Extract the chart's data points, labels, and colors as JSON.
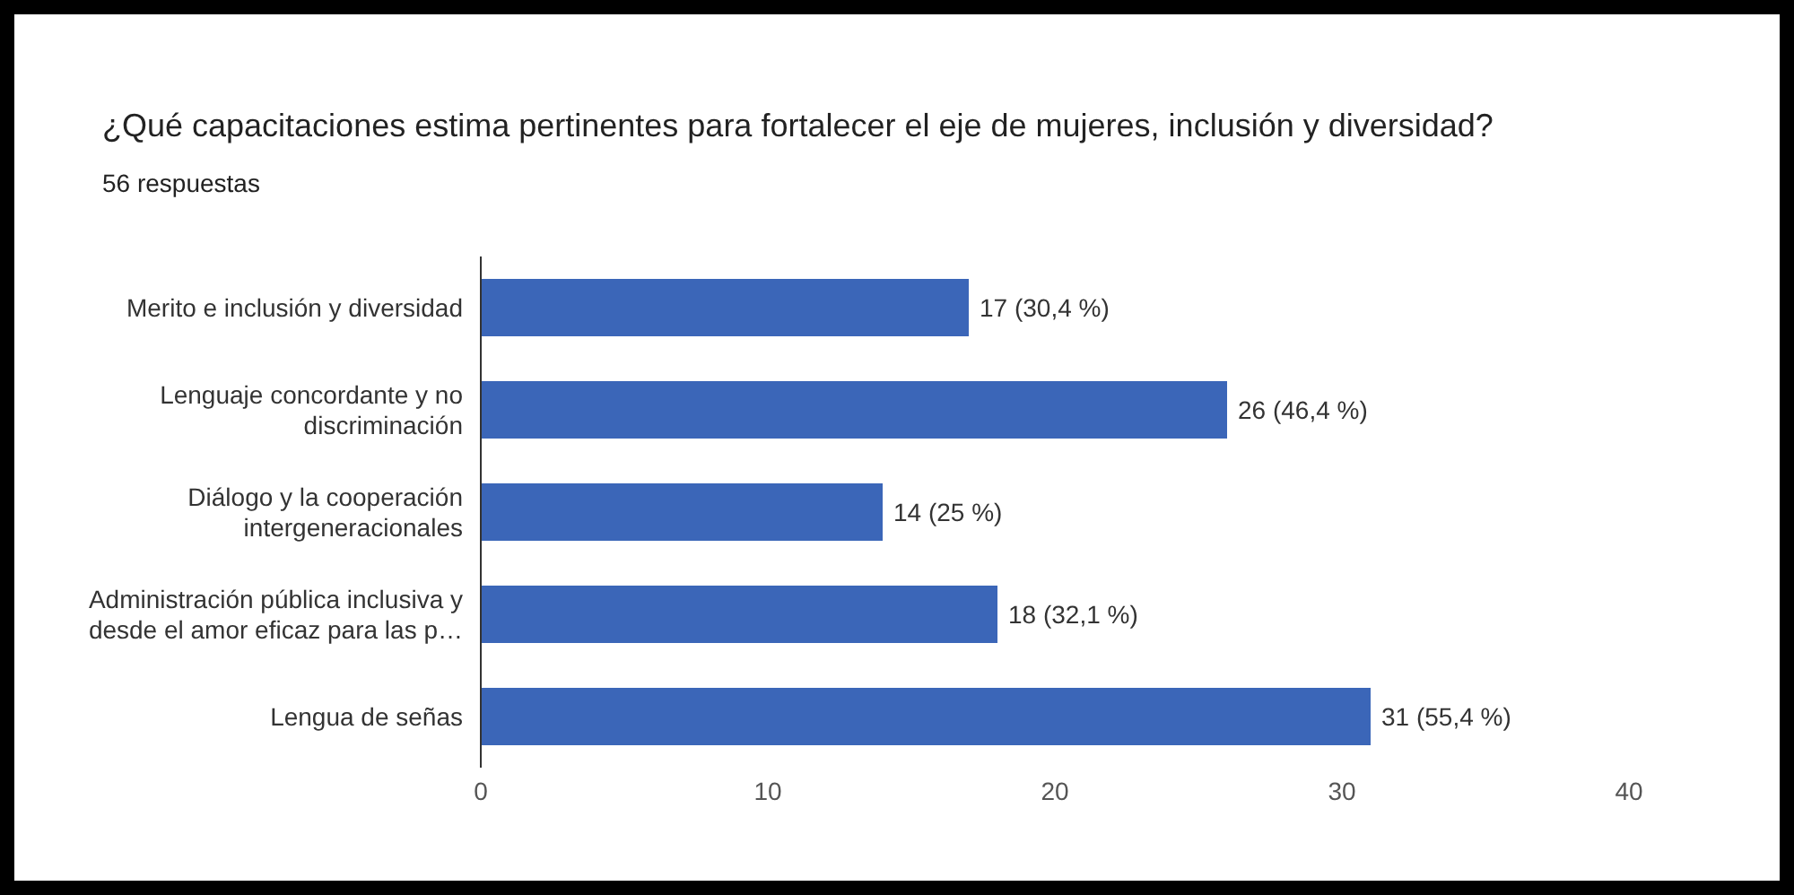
{
  "chart_data": {
    "type": "bar",
    "orientation": "horizontal",
    "title": "¿Qué capacitaciones estima pertinentes para fortalecer el eje de mujeres, inclusión y diversidad?",
    "subtitle": "56 respuestas",
    "categories": [
      "Merito e inclusión y diversidad",
      "Lenguaje concordante y no discriminación",
      "Diálogo y la cooperación intergeneracionales",
      "Administración pública inclusiva y desde el amor eficaz para las p…",
      "Lengua de señas"
    ],
    "values": [
      17,
      26,
      14,
      18,
      31
    ],
    "value_labels": [
      "17 (30,4 %)",
      "26 (46,4 %)",
      "14 (25 %)",
      "18 (32,1 %)",
      "31 (55,4 %)"
    ],
    "color": "#3b66b8",
    "xlim": [
      0,
      40
    ],
    "xticks": [
      0,
      10,
      20,
      30,
      40
    ],
    "grid": false
  }
}
